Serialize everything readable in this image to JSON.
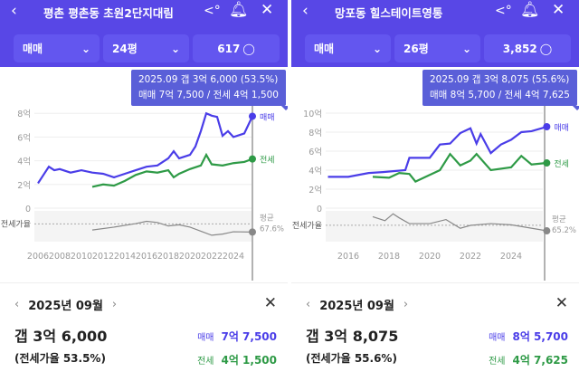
{
  "colors": {
    "header": "#5847e6",
    "sale": "#4a3de8",
    "jeonse": "#2e9a46",
    "ratio": "#888888"
  },
  "panels": [
    {
      "title": "평촌 평촌동 초원2단지대림",
      "trade_type": "매매",
      "size": "24평",
      "comments": "617",
      "tooltip": {
        "line1": "2025.09  갭 3억 6,000 (53.5%)",
        "line2": "매매 7억 7,500 / 전세 4억 1,500"
      },
      "detail": {
        "date": "2025년 09월",
        "gap": "갭 3억 6,000",
        "ratio": "(전세가율 53.5%)",
        "sale_label": "매매",
        "sale": "7억 7,500",
        "jeonse_label": "전세",
        "jeonse": "4억 1,500"
      }
    },
    {
      "title": "망포동 힐스테이트영통",
      "trade_type": "매매",
      "size": "26평",
      "comments": "3,852",
      "tooltip": {
        "line1": "2025.09  갭 3억 8,075 (55.6%)",
        "line2": "매매 8억 5,700 / 전세 4억 7,625"
      },
      "detail": {
        "date": "2025년 09월",
        "gap": "갭 3억 8,075",
        "ratio": "(전세가율 55.6%)",
        "sale_label": "매매",
        "sale": "8억 5,700",
        "jeonse_label": "전세",
        "jeonse": "4억 7,625"
      }
    }
  ],
  "chart_data": [
    {
      "type": "line",
      "yticks": [
        "0",
        "2억",
        "4억",
        "6억",
        "8억"
      ],
      "ylim": [
        0,
        8.2
      ],
      "xlim": [
        2006,
        2026
      ],
      "xticks": [
        "2006",
        "2008",
        "2010",
        "2012",
        "2014",
        "2016",
        "2018",
        "2020",
        "2022",
        "2024"
      ],
      "ratio_label": "전세가율",
      "avg_label": "평균",
      "avg_value": "67.6%",
      "series": [
        {
          "name": "매매",
          "x": [
            2006,
            2006.5,
            2007,
            2007.5,
            2008,
            2009,
            2010,
            2011,
            2012,
            2013,
            2014,
            2015,
            2016,
            2017,
            2018,
            2018.5,
            2019,
            2020,
            2020.5,
            2021,
            2021.5,
            2022,
            2022.5,
            2023,
            2023.5,
            2024,
            2025,
            2025.75
          ],
          "y": [
            2.1,
            2.8,
            3.5,
            3.2,
            3.3,
            3.0,
            3.2,
            3.0,
            2.9,
            2.6,
            2.9,
            3.2,
            3.5,
            3.6,
            4.2,
            4.8,
            4.2,
            4.5,
            5.2,
            6.5,
            8.0,
            7.8,
            7.7,
            6.1,
            6.5,
            6.0,
            6.3,
            7.75
          ]
        },
        {
          "name": "전세",
          "x": [
            2011,
            2012,
            2013,
            2014,
            2015,
            2016,
            2017,
            2018,
            2018.5,
            2019,
            2020,
            2021,
            2021.5,
            2022,
            2023,
            2024,
            2025,
            2025.75
          ],
          "y": [
            1.8,
            2.0,
            1.9,
            2.3,
            2.8,
            3.1,
            3.0,
            3.2,
            2.6,
            2.9,
            3.3,
            3.6,
            4.5,
            3.7,
            3.6,
            3.8,
            3.9,
            4.15
          ]
        },
        {
          "name": "전세가율",
          "x": [
            2011,
            2013,
            2015,
            2016,
            2017,
            2018,
            2019,
            2020,
            2021,
            2022,
            2023,
            2024,
            2025.75
          ],
          "y": [
            57,
            62,
            68,
            72,
            70,
            64,
            66,
            62,
            55,
            48,
            50,
            54,
            53.5
          ]
        }
      ]
    },
    {
      "type": "line",
      "yticks": [
        "0",
        "2억",
        "4억",
        "6억",
        "8억",
        "10억"
      ],
      "ylim": [
        0,
        10
      ],
      "xlim": [
        2015,
        2026
      ],
      "xticks": [
        "2016",
        "2018",
        "2020",
        "2022",
        "2024"
      ],
      "ratio_label": "전세가율",
      "avg_label": "평균",
      "avg_value": "65.2%",
      "series": [
        {
          "name": "매매",
          "x": [
            2015,
            2016,
            2017,
            2017.7,
            2018.8,
            2019,
            2020,
            2020.5,
            2021,
            2021.5,
            2022,
            2022.3,
            2022.5,
            2023,
            2023.5,
            2024,
            2024.5,
            2025,
            2025.75
          ],
          "y": [
            3.3,
            3.3,
            3.7,
            3.8,
            4.0,
            5.3,
            5.3,
            6.7,
            6.8,
            7.9,
            8.4,
            6.8,
            7.8,
            5.8,
            6.7,
            7.2,
            8.0,
            8.1,
            8.57
          ]
        },
        {
          "name": "전세",
          "x": [
            2017.2,
            2018,
            2018.5,
            2019,
            2019.3,
            2020,
            2020.5,
            2021,
            2021.5,
            2022,
            2022.3,
            2023,
            2024,
            2024.5,
            2025,
            2025.75
          ],
          "y": [
            3.3,
            3.2,
            3.7,
            3.6,
            2.8,
            3.5,
            4.0,
            5.7,
            4.5,
            5.0,
            5.7,
            4.0,
            4.3,
            5.5,
            4.6,
            4.76
          ]
        },
        {
          "name": "전세가율",
          "x": [
            2017.2,
            2017.8,
            2018.2,
            2018.5,
            2019,
            2020,
            2020.8,
            2021.5,
            2022,
            2023,
            2024,
            2025.75
          ],
          "y": [
            80,
            73,
            85,
            78,
            68,
            68,
            75,
            60,
            65,
            68,
            66,
            55.6
          ]
        }
      ]
    }
  ]
}
